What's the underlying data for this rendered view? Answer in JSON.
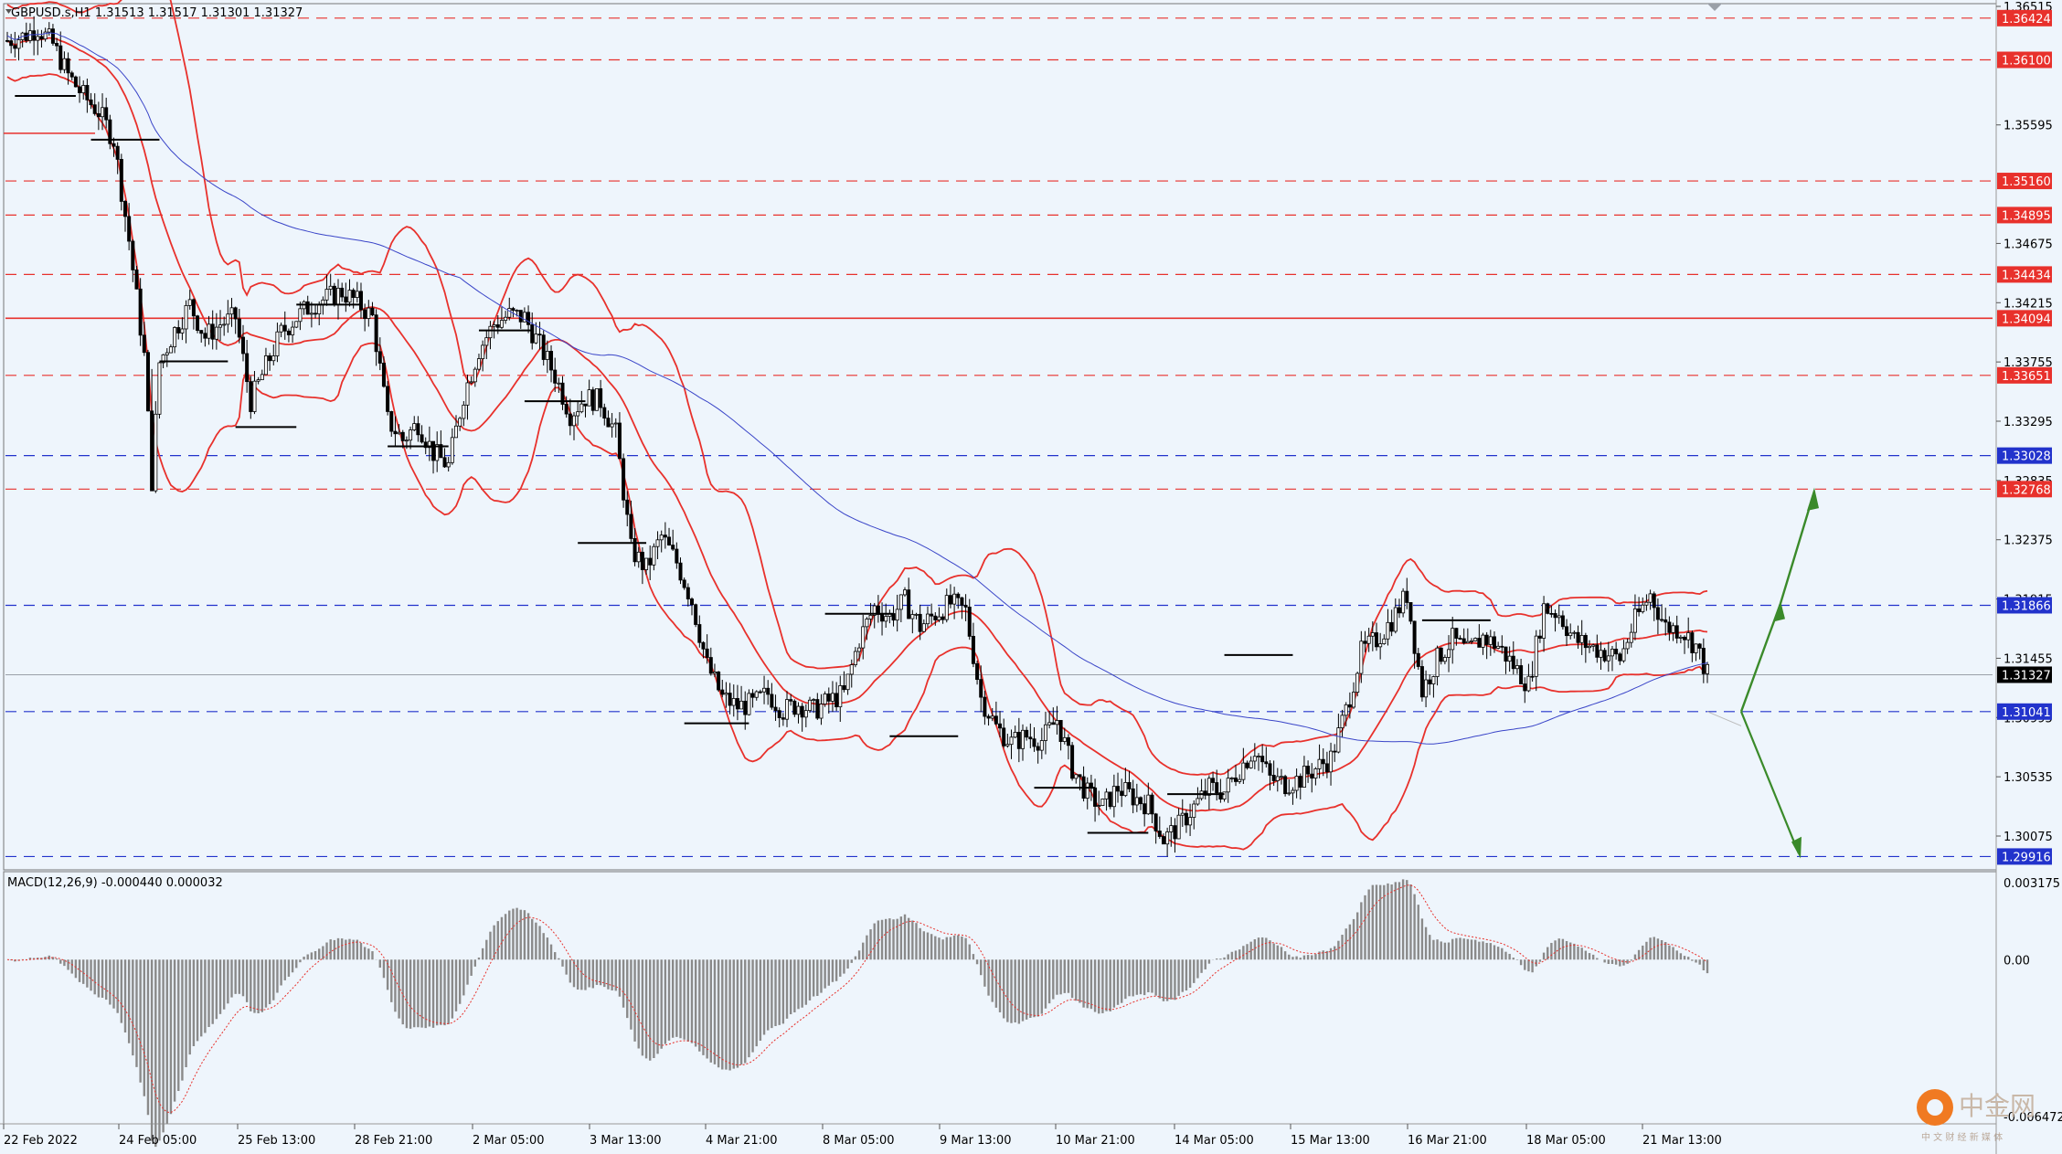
{
  "header": {
    "symbol": "GBPUSD.s,H1",
    "ohlc": "1.31513 1.31517 1.31301 1.31327"
  },
  "macd": {
    "label": "MACD(12,26,9) -0.000440 0.000032",
    "scale": [
      "0.003175",
      "0.00",
      "-0.006472"
    ]
  },
  "price_axis": {
    "ticks": [
      "1.36515",
      "1.35595",
      "1.34675",
      "1.34215",
      "1.33755",
      "1.33295",
      "1.32835",
      "1.32375",
      "1.31915",
      "1.31455",
      "1.30995",
      "1.30535",
      "1.30075"
    ]
  },
  "levels": [
    {
      "label": "1.36424",
      "price": 1.36424,
      "style": "dashed",
      "color": "#e8312c"
    },
    {
      "label": "1.36100",
      "price": 1.361,
      "style": "dashed",
      "color": "#e8312c"
    },
    {
      "label": "1.35160",
      "price": 1.3516,
      "style": "dashed",
      "color": "#e8312c"
    },
    {
      "label": "1.34895",
      "price": 1.34895,
      "style": "dashed",
      "color": "#e8312c"
    },
    {
      "label": "1.34434",
      "price": 1.34434,
      "style": "dashed",
      "color": "#e8312c"
    },
    {
      "label": "1.34094",
      "price": 1.34094,
      "style": "solid",
      "color": "#e8312c"
    },
    {
      "label": "1.33651",
      "price": 1.33651,
      "style": "dashed",
      "color": "#e8312c"
    },
    {
      "label": "1.33028",
      "price": 1.33028,
      "style": "dashed",
      "color": "#2233cc"
    },
    {
      "label": "1.32768",
      "price": 1.32768,
      "style": "dashed",
      "color": "#e8312c"
    },
    {
      "label": "1.31866",
      "price": 1.31866,
      "style": "dashed",
      "color": "#2233cc"
    },
    {
      "label": "1.31327",
      "price": 1.31327,
      "style": "current",
      "color": "#000000"
    },
    {
      "label": "1.31041",
      "price": 1.31041,
      "style": "dashed",
      "color": "#2233cc"
    },
    {
      "label": "1.29916",
      "price": 1.29916,
      "style": "dashed",
      "color": "#2233cc"
    }
  ],
  "time_axis": {
    "labels": [
      "22 Feb 2022",
      "24 Feb 05:00",
      "25 Feb 13:00",
      "28 Feb 21:00",
      "2 Mar 05:00",
      "3 Mar 13:00",
      "4 Mar 21:00",
      "8 Mar 05:00",
      "9 Mar 13:00",
      "10 Mar 21:00",
      "14 Mar 05:00",
      "15 Mar 13:00",
      "16 Mar 21:00",
      "18 Mar 05:00",
      "21 Mar 13:00"
    ]
  },
  "watermark": {
    "brand": "中金网",
    "sub": "中 文 财 经 新 媒 体"
  },
  "colors": {
    "background": "#eef5fc",
    "red_line": "#e8312c",
    "blue_line": "#2233cc",
    "ma_blue": "#3a45c8",
    "arrow": "#3a8a2a",
    "candle": "#000000"
  },
  "chart_data": {
    "type": "candlestick",
    "symbol": "GBPUSD.s",
    "timeframe": "H1",
    "price_range": [
      1.2985,
      1.3652
    ],
    "macd_range": [
      -0.006472,
      0.003175
    ],
    "trend_path": [
      [
        0,
        1.3625
      ],
      [
        4,
        1.3628
      ],
      [
        8,
        1.3635
      ],
      [
        12,
        1.3622
      ],
      [
        16,
        1.3598
      ],
      [
        20,
        1.3582
      ],
      [
        24,
        1.357
      ],
      [
        28,
        1.3548
      ],
      [
        32,
        1.347
      ],
      [
        36,
        1.338
      ],
      [
        38,
        1.3283
      ],
      [
        40,
        1.3375
      ],
      [
        44,
        1.34
      ],
      [
        48,
        1.342
      ],
      [
        52,
        1.3395
      ],
      [
        56,
        1.3405
      ],
      [
        60,
        1.341
      ],
      [
        64,
        1.3345
      ],
      [
        68,
        1.3372
      ],
      [
        72,
        1.3398
      ],
      [
        76,
        1.341
      ],
      [
        80,
        1.342
      ],
      [
        84,
        1.3425
      ],
      [
        88,
        1.343
      ],
      [
        92,
        1.3422
      ],
      [
        96,
        1.341
      ],
      [
        100,
        1.333
      ],
      [
        104,
        1.3315
      ],
      [
        108,
        1.3328
      ],
      [
        112,
        1.3305
      ],
      [
        116,
        1.3295
      ],
      [
        120,
        1.335
      ],
      [
        124,
        1.3385
      ],
      [
        128,
        1.3405
      ],
      [
        132,
        1.3412
      ],
      [
        136,
        1.341
      ],
      [
        140,
        1.3388
      ],
      [
        144,
        1.3365
      ],
      [
        148,
        1.3335
      ],
      [
        152,
        1.3348
      ],
      [
        156,
        1.3345
      ],
      [
        160,
        1.332
      ],
      [
        164,
        1.323
      ],
      [
        168,
        1.3215
      ],
      [
        172,
        1.324
      ],
      [
        176,
        1.322
      ],
      [
        180,
        1.319
      ],
      [
        184,
        1.314
      ],
      [
        188,
        1.3115
      ],
      [
        192,
        1.3108
      ],
      [
        196,
        1.311
      ],
      [
        200,
        1.3118
      ],
      [
        204,
        1.3105
      ],
      [
        208,
        1.311
      ],
      [
        212,
        1.3105
      ],
      [
        216,
        1.3112
      ],
      [
        220,
        1.3118
      ],
      [
        224,
        1.316
      ],
      [
        228,
        1.3185
      ],
      [
        232,
        1.3178
      ],
      [
        236,
        1.319
      ],
      [
        240,
        1.317
      ],
      [
        244,
        1.318
      ],
      [
        248,
        1.3188
      ],
      [
        252,
        1.3182
      ],
      [
        256,
        1.3115
      ],
      [
        260,
        1.3092
      ],
      [
        264,
        1.308
      ],
      [
        268,
        1.3085
      ],
      [
        272,
        1.3082
      ],
      [
        276,
        1.3098
      ],
      [
        280,
        1.306
      ],
      [
        284,
        1.304
      ],
      [
        288,
        1.303
      ],
      [
        292,
        1.3045
      ],
      [
        296,
        1.3038
      ],
      [
        300,
        1.3032
      ],
      [
        304,
        1.3005
      ],
      [
        308,
        1.3015
      ],
      [
        312,
        1.303
      ],
      [
        316,
        1.3045
      ],
      [
        320,
        1.3042
      ],
      [
        324,
        1.306
      ],
      [
        328,
        1.3075
      ],
      [
        332,
        1.3052
      ],
      [
        336,
        1.3048
      ],
      [
        340,
        1.3052
      ],
      [
        344,
        1.306
      ],
      [
        348,
        1.3068
      ],
      [
        352,
        1.3105
      ],
      [
        356,
        1.315
      ],
      [
        360,
        1.316
      ],
      [
        364,
        1.3175
      ],
      [
        368,
        1.3195
      ],
      [
        372,
        1.312
      ],
      [
        376,
        1.3145
      ],
      [
        380,
        1.316
      ],
      [
        384,
        1.315
      ],
      [
        388,
        1.3162
      ],
      [
        392,
        1.3155
      ],
      [
        396,
        1.314
      ],
      [
        400,
        1.3125
      ],
      [
        404,
        1.3185
      ],
      [
        408,
        1.318
      ],
      [
        412,
        1.316
      ],
      [
        416,
        1.3155
      ],
      [
        420,
        1.315
      ],
      [
        424,
        1.3145
      ],
      [
        428,
        1.3175
      ],
      [
        432,
        1.3195
      ],
      [
        436,
        1.317
      ],
      [
        440,
        1.3168
      ],
      [
        444,
        1.3155
      ],
      [
        447,
        1.3133
      ]
    ]
  }
}
